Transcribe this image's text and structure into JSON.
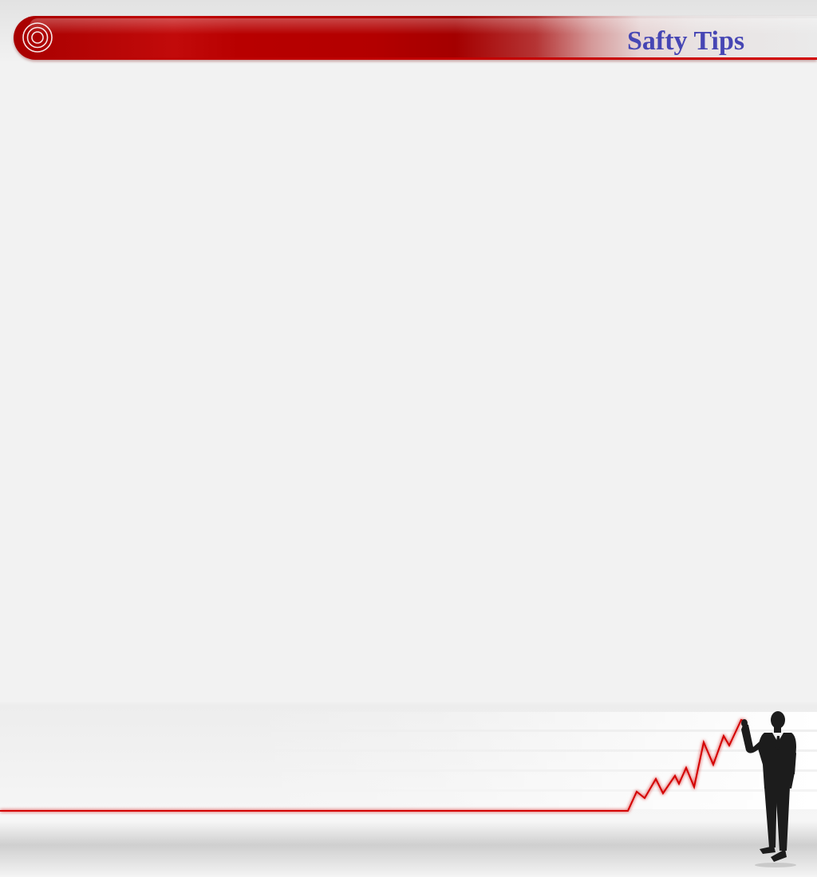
{
  "header": {
    "title": "Safty Tips",
    "accent_color": "#b30000",
    "title_color": "#4646b4",
    "icon": "target-icon"
  },
  "footer": {
    "line_color": "#d40000",
    "figure": "businessman-silhouette-icon",
    "graph": "growth-line-graph"
  }
}
